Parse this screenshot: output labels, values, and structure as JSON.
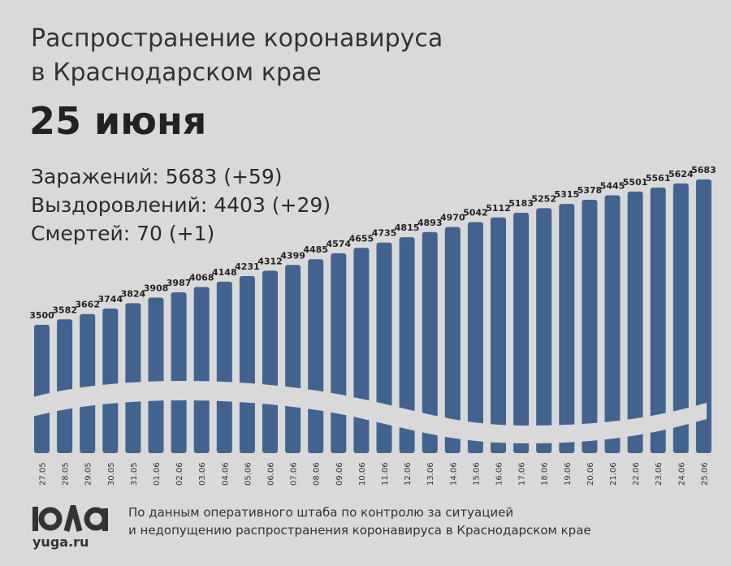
{
  "header": {
    "title_line1": "Распространение коронавируса",
    "title_line2": "в Краснодарском крае",
    "date": "25 июня"
  },
  "stats": {
    "infected": "Заражений: 5683 (+59)",
    "recovered": "Выздоровлений: 4403 (+29)",
    "deaths": "Смертей: 70 (+1)"
  },
  "footer": {
    "logo": "ЮГА",
    "site": "yuga.ru",
    "source_line1": "По данным оперативного штаба по контролю за ситуацией",
    "source_line2": "и недопущению распространения коронавируса в Краснодарском крае"
  },
  "colors": {
    "bar": "#42638f",
    "background": "#d9d9d9"
  },
  "chart_data": {
    "type": "bar",
    "title": "Заражений",
    "categories": [
      "27.05",
      "28.05",
      "29.05",
      "30.05",
      "31.05",
      "01.06",
      "02.06",
      "03.06",
      "04.06",
      "05.06",
      "06.06",
      "07.06",
      "08.06",
      "09.06",
      "10.06",
      "11.06",
      "12.06",
      "13.06",
      "14.06",
      "15.06",
      "16.06",
      "17.06",
      "18.06",
      "19.06",
      "20.06",
      "21.06",
      "22.06",
      "23.06",
      "24.06",
      "25.06"
    ],
    "values": [
      3500,
      3582,
      3662,
      3744,
      3824,
      3908,
      3987,
      4068,
      4148,
      4231,
      4312,
      4399,
      4485,
      4574,
      4655,
      4735,
      4815,
      4893,
      4970,
      5042,
      5112,
      5183,
      5252,
      5315,
      5378,
      5445,
      5501,
      5561,
      5624,
      5683
    ],
    "xlabel": "",
    "ylabel": "",
    "grid": false
  }
}
